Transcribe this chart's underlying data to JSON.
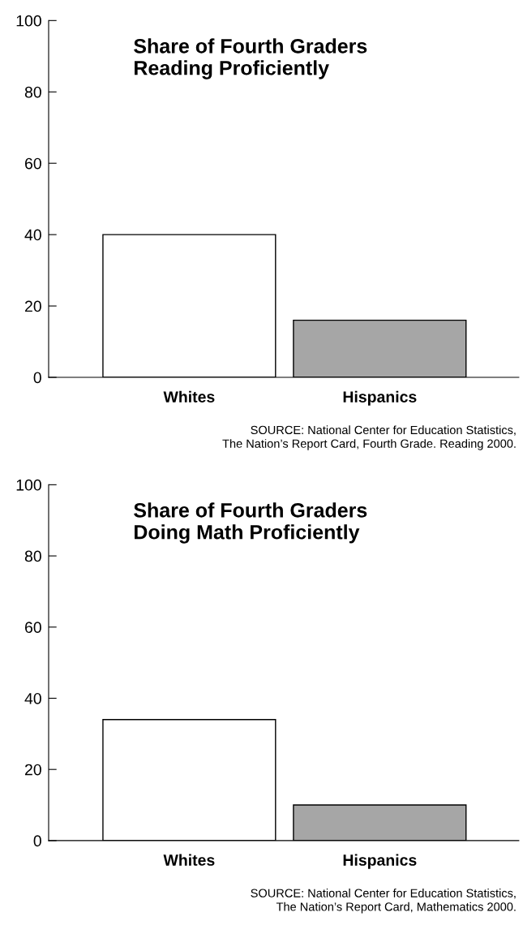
{
  "chart_data": [
    {
      "type": "bar",
      "title": "Share of Fourth Graders\nReading Proficiently",
      "categories": [
        "Whites",
        "Hispanics"
      ],
      "values": [
        40,
        16
      ],
      "colors": [
        "#ffffff",
        "#a6a6a6"
      ],
      "ylim": [
        0,
        100
      ],
      "yticks": [
        0,
        20,
        40,
        60,
        80,
        100
      ],
      "grid": false,
      "legend": false,
      "annotations": [
        "SOURCE: National Center for Education Statistics,\nThe Nation’s Report Card, Fourth Grade. Reading 2000."
      ]
    },
    {
      "type": "bar",
      "title": "Share of Fourth Graders\nDoing Math Proficiently",
      "categories": [
        "Whites",
        "Hispanics"
      ],
      "values": [
        34,
        10
      ],
      "colors": [
        "#ffffff",
        "#a6a6a6"
      ],
      "ylim": [
        0,
        100
      ],
      "yticks": [
        0,
        20,
        40,
        60,
        80,
        100
      ],
      "grid": false,
      "legend": false,
      "annotations": [
        "SOURCE: National Center for Education Statistics,\nThe Nation’s Report Card, Mathematics 2000."
      ]
    }
  ]
}
